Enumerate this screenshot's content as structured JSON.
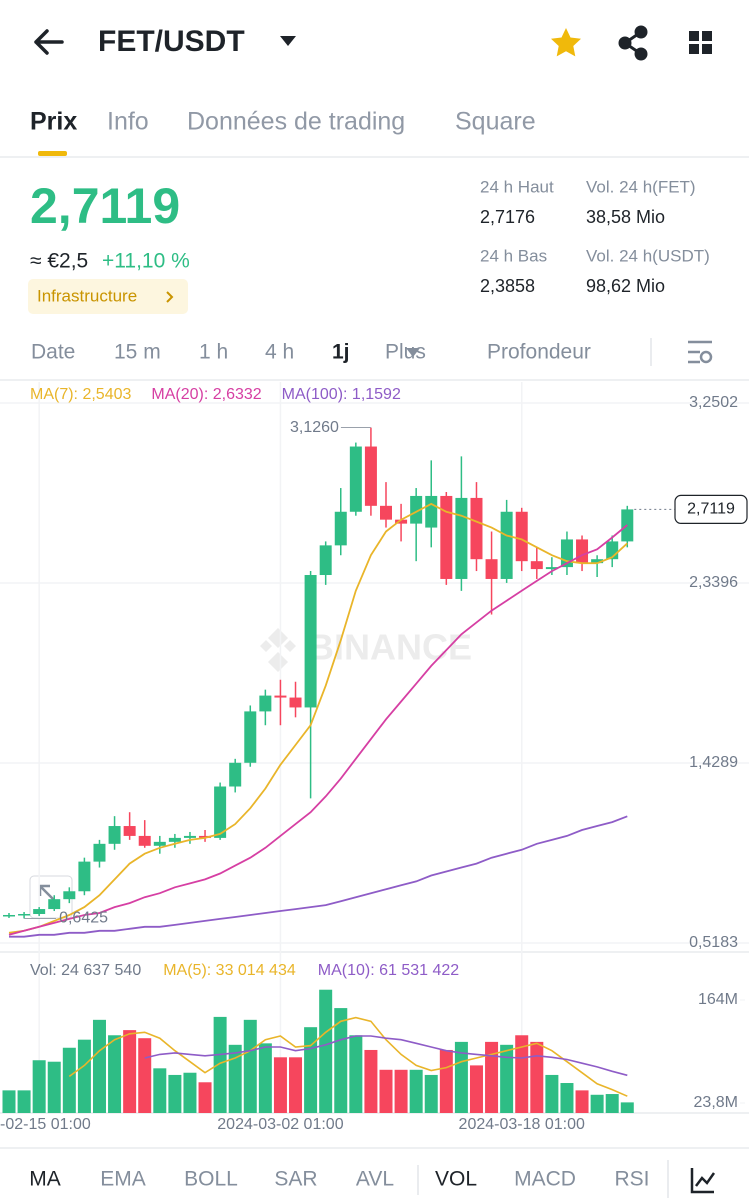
{
  "header": {
    "title": "FET/USDT"
  },
  "tabs": [
    "Prix",
    "Info",
    "Données de trading",
    "Square"
  ],
  "ticker": {
    "price": "2,7119",
    "fiat": "≈ €2,5",
    "change": "+11,10 %",
    "tag": "Infrastructure"
  },
  "stats": [
    {
      "label": "24 h Haut",
      "value": "2,7176"
    },
    {
      "label": "Vol. 24 h(FET)",
      "value": "38,58 Mio"
    },
    {
      "label": "24 h Bas",
      "value": "2,3858"
    },
    {
      "label": "Vol. 24 h(USDT)",
      "value": "98,62 Mio"
    }
  ],
  "intervals": [
    "Date",
    "15 m",
    "1 h",
    "4 h",
    "1j",
    "Plus",
    "Profondeur"
  ],
  "chart_data": {
    "type": "candlestick",
    "categories": [
      null,
      null,
      "-02-15 01:00",
      null,
      null,
      null,
      null,
      null,
      null,
      null,
      null,
      null,
      null,
      null,
      null,
      null,
      null,
      null,
      "2024-03-02 01:00",
      null,
      null,
      null,
      null,
      null,
      null,
      null,
      null,
      null,
      null,
      null,
      null,
      null,
      null,
      null,
      "2024-03-18 01:00",
      null,
      null,
      null,
      null,
      null,
      null,
      null
    ],
    "open": [
      0.655,
      0.66,
      0.665,
      0.69,
      0.74,
      0.78,
      0.93,
      1.02,
      1.11,
      1.06,
      1.01,
      1.03,
      1.05,
      1.06,
      1.05,
      1.31,
      1.43,
      1.69,
      1.77,
      1.76,
      1.71,
      2.38,
      2.53,
      2.7,
      3.03,
      2.73,
      2.66,
      2.64,
      2.62,
      2.78,
      2.36,
      2.77,
      2.46,
      2.36,
      2.7,
      2.45,
      2.41,
      2.42,
      2.56,
      2.44,
      2.46,
      2.55
    ],
    "high": [
      0.67,
      0.675,
      0.7,
      0.76,
      0.8,
      0.95,
      1.04,
      1.16,
      1.18,
      1.14,
      1.06,
      1.07,
      1.08,
      1.09,
      1.33,
      1.45,
      1.72,
      1.8,
      1.85,
      1.84,
      2.4,
      2.55,
      2.82,
      3.05,
      3.126,
      2.85,
      2.74,
      2.82,
      2.96,
      2.8,
      2.98,
      2.85,
      2.6,
      2.76,
      2.72,
      2.52,
      2.47,
      2.6,
      2.58,
      2.48,
      2.58,
      2.73
    ],
    "low": [
      0.645,
      0.6425,
      0.655,
      0.68,
      0.72,
      0.76,
      0.9,
      0.99,
      1.04,
      1.0,
      0.97,
      1.0,
      1.02,
      1.03,
      1.04,
      1.28,
      1.41,
      1.62,
      1.62,
      1.66,
      1.25,
      2.33,
      2.48,
      2.68,
      2.68,
      2.62,
      2.55,
      2.45,
      2.52,
      2.33,
      2.3,
      2.4,
      2.18,
      2.34,
      2.4,
      2.36,
      2.38,
      2.38,
      2.4,
      2.37,
      2.42,
      2.52
    ],
    "close": [
      0.66,
      0.665,
      0.69,
      0.74,
      0.78,
      0.93,
      1.02,
      1.11,
      1.06,
      1.01,
      1.03,
      1.05,
      1.06,
      1.05,
      1.31,
      1.43,
      1.69,
      1.77,
      1.76,
      1.71,
      2.38,
      2.53,
      2.7,
      3.03,
      2.73,
      2.66,
      2.64,
      2.78,
      2.78,
      2.36,
      2.77,
      2.46,
      2.36,
      2.7,
      2.45,
      2.41,
      2.42,
      2.56,
      2.44,
      2.46,
      2.55,
      2.7119
    ],
    "up_color": "#2ebd85",
    "down_color": "#f6465d",
    "ylim": [
      0.4778,
      3.3413
    ],
    "yticks": [
      {
        "value": 0.5183,
        "label": "0,5183"
      },
      {
        "value": 1.4289,
        "label": "1,4289"
      },
      {
        "value": 2.3396,
        "label": "2,3396"
      },
      {
        "value": 3.2502,
        "label": "3,2502"
      }
    ],
    "grid": true,
    "legend": [
      "MA(7): 2,5403",
      "MA(20): 2,6332",
      "MA(100): 1,1592"
    ],
    "series": [
      {
        "name": "MA(7)",
        "color": "#e9b52a",
        "values": [
          0.57,
          0.58,
          0.6,
          0.63,
          0.66,
          0.7,
          0.76,
          0.84,
          0.92,
          0.97,
          1.0,
          1.02,
          1.04,
          1.05,
          1.07,
          1.12,
          1.2,
          1.3,
          1.42,
          1.52,
          1.62,
          1.82,
          2.05,
          2.3,
          2.48,
          2.6,
          2.66,
          2.7,
          2.74,
          2.7,
          2.68,
          2.65,
          2.62,
          2.58,
          2.56,
          2.52,
          2.48,
          2.45,
          2.44,
          2.44,
          2.47,
          2.5403
        ]
      },
      {
        "name": "MA(20)",
        "color": "#d63fa3",
        "values": [
          0.56,
          0.58,
          0.6,
          0.62,
          0.64,
          0.66,
          0.67,
          0.7,
          0.72,
          0.75,
          0.77,
          0.8,
          0.82,
          0.84,
          0.87,
          0.91,
          0.95,
          1.0,
          1.06,
          1.12,
          1.18,
          1.26,
          1.35,
          1.45,
          1.55,
          1.65,
          1.74,
          1.83,
          1.92,
          2.0,
          2.08,
          2.14,
          2.2,
          2.25,
          2.3,
          2.35,
          2.4,
          2.44,
          2.48,
          2.51,
          2.57,
          2.6332
        ]
      },
      {
        "name": "MA(100)",
        "color": "#8e5cc7",
        "values": [
          0.55,
          0.55,
          0.56,
          0.56,
          0.57,
          0.57,
          0.58,
          0.58,
          0.59,
          0.6,
          0.6,
          0.61,
          0.62,
          0.63,
          0.64,
          0.65,
          0.66,
          0.67,
          0.68,
          0.69,
          0.7,
          0.71,
          0.73,
          0.75,
          0.77,
          0.79,
          0.81,
          0.83,
          0.86,
          0.88,
          0.9,
          0.92,
          0.95,
          0.97,
          0.99,
          1.02,
          1.04,
          1.06,
          1.09,
          1.11,
          1.13,
          1.1592
        ]
      }
    ],
    "last_price_label": "2,7119",
    "max_label": "3,1260",
    "min_label": "0,6425",
    "watermark": "BINANCE",
    "volume": {
      "values": [
        41000000,
        41000000,
        82000000,
        80000000,
        99000000,
        110000000,
        137000000,
        116000000,
        123000000,
        112000000,
        71000000,
        62000000,
        65000000,
        52000000,
        141000000,
        103000000,
        137000000,
        105000000,
        86000000,
        86000000,
        127000000,
        178000000,
        153000000,
        116000000,
        96000000,
        69000000,
        69000000,
        69000000,
        62000000,
        96000000,
        107000000,
        75000000,
        107000000,
        103000000,
        116000000,
        107000000,
        62000000,
        51000000,
        41000000,
        35000000,
        36000000,
        24637540
      ],
      "ylim": [
        10190000,
        184420000
      ],
      "yticks": [
        {
          "value": 23800000,
          "label": "23,8M"
        },
        {
          "value": 164000000,
          "label": "164M"
        }
      ],
      "legend": [
        "Vol: 24 637 540",
        "MA(5): 33 014 434",
        "MA(10): 61 531 422"
      ],
      "series": [
        {
          "name": "MA(5)",
          "color": "#e9b52a",
          "values": [
            null,
            null,
            null,
            null,
            60000000,
            75000000,
            95000000,
            110000000,
            118000000,
            120000000,
            112000000,
            95000000,
            80000000,
            65000000,
            78000000,
            85000000,
            95000000,
            110000000,
            115000000,
            100000000,
            102000000,
            120000000,
            135000000,
            140000000,
            135000000,
            110000000,
            90000000,
            75000000,
            68000000,
            72000000,
            80000000,
            85000000,
            90000000,
            95000000,
            100000000,
            105000000,
            95000000,
            80000000,
            65000000,
            50000000,
            42000000,
            33014434
          ]
        },
        {
          "name": "MA(10)",
          "color": "#8e5cc7",
          "values": [
            null,
            null,
            null,
            null,
            null,
            null,
            null,
            null,
            null,
            85000000,
            90000000,
            92000000,
            90000000,
            88000000,
            90000000,
            92000000,
            95000000,
            100000000,
            100000000,
            95000000,
            98000000,
            103000000,
            110000000,
            115000000,
            115000000,
            112000000,
            110000000,
            105000000,
            100000000,
            95000000,
            92000000,
            90000000,
            88000000,
            86000000,
            85000000,
            88000000,
            86000000,
            83000000,
            78000000,
            73000000,
            67000000,
            61531422
          ]
        }
      ]
    }
  },
  "indicators": [
    "MA",
    "EMA",
    "BOLL",
    "SAR",
    "AVL",
    "VOL",
    "MACD",
    "RSI"
  ]
}
